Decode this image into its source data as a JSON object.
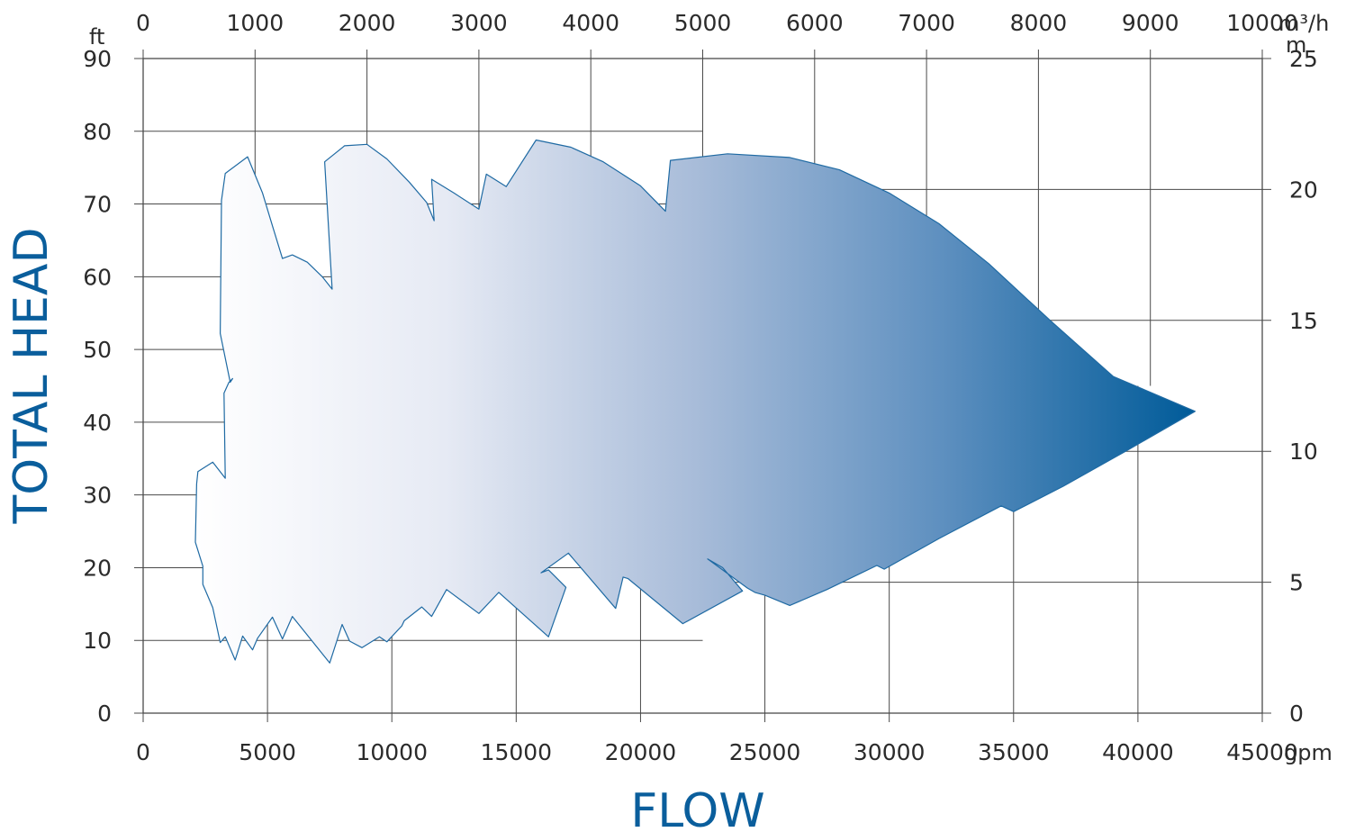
{
  "chart_data": {
    "type": "area",
    "xlabel": "FLOW",
    "ylabel": "TOTAL HEAD",
    "x_bottom": {
      "unit": "gpm",
      "ticks": [
        0,
        5000,
        10000,
        15000,
        20000,
        25000,
        30000,
        35000,
        40000,
        45000
      ],
      "range": [
        0,
        45000
      ]
    },
    "x_top": {
      "unit": "m³/h",
      "ticks": [
        0,
        1000,
        2000,
        3000,
        4000,
        5000,
        6000,
        7000,
        8000,
        9000,
        10000
      ],
      "range": [
        0,
        10000
      ]
    },
    "y_left": {
      "unit": "ft",
      "ticks": [
        0,
        10,
        20,
        30,
        40,
        50,
        60,
        70,
        80,
        90
      ],
      "range": [
        0,
        90
      ]
    },
    "y_right": {
      "unit": "m",
      "ticks": [
        0,
        5,
        10,
        15,
        20,
        25
      ],
      "range": [
        0,
        25
      ]
    },
    "grid": true,
    "fill_gradient": [
      "#ffffff",
      "#e6eaf4",
      "#a8bcd9",
      "#5d8fbf",
      "#005b99"
    ],
    "outline_color": "#1f6aa3",
    "series": [
      {
        "points": [
          [
            2100,
            23.5
          ],
          [
            2150,
            31.5
          ],
          [
            2200,
            33.2
          ],
          [
            2800,
            34.5
          ],
          [
            3300,
            32.3
          ],
          [
            3250,
            44.0
          ],
          [
            3450,
            45.5
          ],
          [
            3600,
            46.0
          ],
          [
            3500,
            45.5
          ],
          [
            3100,
            52.2
          ],
          [
            3150,
            70.5
          ],
          [
            3300,
            74.2
          ],
          [
            4200,
            76.5
          ],
          [
            4800,
            71.5
          ],
          [
            5200,
            67.0
          ],
          [
            5600,
            62.5
          ],
          [
            6000,
            63.0
          ],
          [
            6600,
            62.0
          ],
          [
            7200,
            60.0
          ],
          [
            7600,
            58.3
          ],
          [
            7300,
            75.8
          ],
          [
            8100,
            78.0
          ],
          [
            9000,
            78.2
          ],
          [
            9800,
            76.2
          ],
          [
            10700,
            73.0
          ],
          [
            11400,
            70.2
          ],
          [
            11700,
            67.7
          ],
          [
            11600,
            73.4
          ],
          [
            12500,
            71.5
          ],
          [
            13500,
            69.3
          ],
          [
            13800,
            74.1
          ],
          [
            14600,
            72.4
          ],
          [
            15800,
            78.8
          ],
          [
            17200,
            77.8
          ],
          [
            18500,
            75.8
          ],
          [
            20000,
            72.5
          ],
          [
            21000,
            69.0
          ],
          [
            21200,
            76.0
          ],
          [
            23500,
            76.9
          ],
          [
            26000,
            76.4
          ],
          [
            28000,
            74.7
          ],
          [
            30000,
            71.5
          ],
          [
            32000,
            67.3
          ],
          [
            34000,
            61.8
          ],
          [
            36500,
            53.9
          ],
          [
            39000,
            46.3
          ],
          [
            42300,
            41.5
          ],
          [
            39500,
            36.0
          ],
          [
            37000,
            31.2
          ],
          [
            35000,
            27.7
          ],
          [
            34500,
            28.5
          ],
          [
            32000,
            24.0
          ],
          [
            29800,
            19.8
          ],
          [
            29500,
            20.3
          ],
          [
            27500,
            17.0
          ],
          [
            26000,
            14.8
          ],
          [
            25000,
            16.2
          ],
          [
            24600,
            16.6
          ],
          [
            24300,
            17.2
          ],
          [
            22700,
            21.2
          ],
          [
            22800,
            21.0
          ],
          [
            23300,
            20.0
          ],
          [
            24100,
            16.8
          ],
          [
            21700,
            12.3
          ],
          [
            19500,
            18.5
          ],
          [
            19300,
            18.7
          ],
          [
            19000,
            14.4
          ],
          [
            17100,
            22.0
          ],
          [
            16000,
            19.3
          ],
          [
            16300,
            19.7
          ],
          [
            17000,
            17.3
          ],
          [
            16300,
            10.5
          ],
          [
            14300,
            16.6
          ],
          [
            13500,
            13.7
          ],
          [
            12200,
            17.0
          ],
          [
            11600,
            13.3
          ],
          [
            11200,
            14.6
          ],
          [
            10500,
            12.7
          ],
          [
            10400,
            12.0
          ],
          [
            9800,
            9.8
          ],
          [
            9500,
            10.5
          ],
          [
            8800,
            9.0
          ],
          [
            8300,
            9.9
          ],
          [
            8000,
            12.2
          ],
          [
            7500,
            6.9
          ],
          [
            6000,
            13.3
          ],
          [
            5600,
            10.2
          ],
          [
            5200,
            13.2
          ],
          [
            4600,
            10.3
          ],
          [
            4400,
            8.7
          ],
          [
            4000,
            10.6
          ],
          [
            3700,
            7.3
          ],
          [
            3300,
            10.5
          ],
          [
            3100,
            9.7
          ],
          [
            2800,
            14.5
          ],
          [
            2400,
            17.7
          ],
          [
            2400,
            20.2
          ],
          [
            2100,
            23.5
          ]
        ]
      }
    ]
  }
}
